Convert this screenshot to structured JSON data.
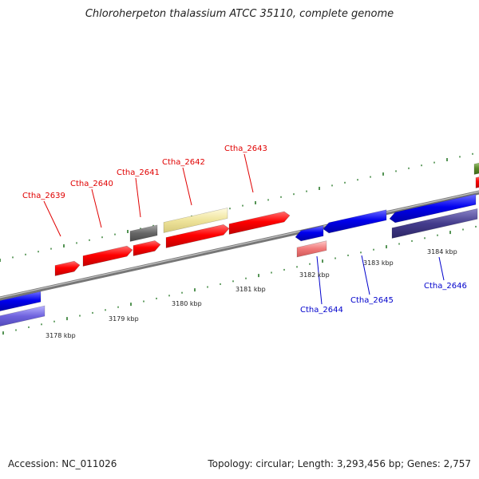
{
  "title": "Chloroherpeton thalassium ATCC 35110, complete genome",
  "footer": {
    "accession": "Accession: NC_011026",
    "summary": "Topology: circular; Length: 3,293,456 bp; Genes: 2,757"
  },
  "colors": {
    "forward_gene": "#ff0000",
    "reverse_gene": "#0000ee",
    "forward_label": "#e00000",
    "reverse_label": "#0000cc",
    "backbone": "#888888",
    "tick": "#2a7a2a"
  },
  "forward_labels": [
    "Ctha_2639",
    "Ctha_2640",
    "Ctha_2641",
    "Ctha_2642",
    "Ctha_2643"
  ],
  "reverse_labels": [
    "Ctha_2644",
    "Ctha_2645",
    "Ctha_2646"
  ],
  "kbp_labels": [
    "3178 kbp",
    "3179 kbp",
    "3180 kbp",
    "3181 kbp",
    "3182 kbp",
    "3183 kbp",
    "3184 kbp"
  ]
}
